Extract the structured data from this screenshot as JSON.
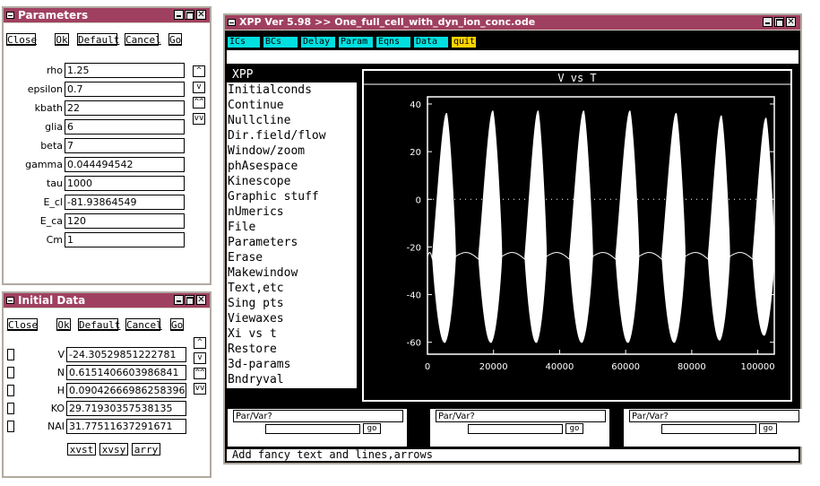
{
  "params_window": {
    "title": "Parameters",
    "buttons": [
      "Close",
      "Ok",
      "Default",
      "Cancel",
      "Go"
    ],
    "side_buttons": [
      "^",
      "v",
      "^^",
      "vv"
    ],
    "rows": [
      {
        "label": "rho",
        "value": "1.25"
      },
      {
        "label": "epsilon",
        "value": "0.7"
      },
      {
        "label": "kbath",
        "value": "22"
      },
      {
        "label": "glia",
        "value": "6"
      },
      {
        "label": "beta",
        "value": "7"
      },
      {
        "label": "gamma",
        "value": "0.044494542"
      },
      {
        "label": "tau",
        "value": "1000"
      },
      {
        "label": "E_cl",
        "value": "-81.93864549"
      },
      {
        "label": "E_ca",
        "value": "120"
      },
      {
        "label": "Cm",
        "value": "1"
      }
    ]
  },
  "init_window": {
    "title": "Initial Data",
    "buttons": [
      "Close",
      "Ok",
      "Default",
      "Cancel",
      "Go"
    ],
    "side_buttons": [
      "^",
      "v",
      "^^",
      "vv"
    ],
    "rows": [
      {
        "label": "V",
        "value": "-24.30529851222781"
      },
      {
        "label": "N",
        "value": "0.6151406603986841"
      },
      {
        "label": "H",
        "value": "0.09042666986258396"
      },
      {
        "label": "KO",
        "value": "29.71930357538135"
      },
      {
        "label": "NAI",
        "value": "31.77511637291671"
      }
    ],
    "bottom_buttons": [
      "xvst",
      "xvsy",
      "arry"
    ]
  },
  "xpp_window": {
    "title": "XPP Ver 5.98 >> One_full_cell_with_dyn_ion_conc.ode",
    "top_tabs": [
      "ICs",
      "BCs",
      "Delay",
      "Param",
      "Eqns",
      "Data",
      "quit"
    ],
    "menu_header": "XPP",
    "menu_items": [
      "Initialconds",
      "Continue",
      "Nullcline",
      "Dir.field/flow",
      "Window/zoom",
      "phAsespace",
      "Kinescope",
      "Graphic stuff",
      "nUmerics",
      "File",
      "Parameters",
      "Erase",
      "Makewindow",
      "Text,etc",
      "Sing pts",
      "Viewaxes",
      "Xi vs t",
      "Restore",
      "3d-params",
      "Bndryval"
    ],
    "sliders": [
      {
        "field": "Par/Var?",
        "go": "go"
      },
      {
        "field": "Par/Var?",
        "go": "go"
      },
      {
        "field": "Par/Var?",
        "go": "go"
      }
    ],
    "status": "Add fancy text and lines,arrows"
  },
  "chart_data": {
    "type": "line",
    "title": "V vs T",
    "xlabel": "",
    "ylabel": "",
    "xlim": [
      0,
      105000
    ],
    "ylim": [
      -65,
      43
    ],
    "x_ticks": [
      0,
      20000,
      40000,
      60000,
      80000,
      100000
    ],
    "y_ticks": [
      40,
      20,
      0,
      -20,
      -40,
      -60
    ],
    "grid": false,
    "colors": {
      "background": "#000000",
      "trace": "#ffffff",
      "zero_line": "#ffffff"
    },
    "baseline_v": -24,
    "bursts": [
      {
        "t_start": 1500,
        "t_end": 8500,
        "v_max": 36,
        "v_min": -60
      },
      {
        "t_start": 15500,
        "t_end": 22500,
        "v_max": 37,
        "v_min": -60
      },
      {
        "t_start": 29500,
        "t_end": 36000,
        "v_max": 37,
        "v_min": -60
      },
      {
        "t_start": 43000,
        "t_end": 50000,
        "v_max": 37,
        "v_min": -60
      },
      {
        "t_start": 57000,
        "t_end": 64000,
        "v_max": 37,
        "v_min": -60
      },
      {
        "t_start": 71000,
        "t_end": 78000,
        "v_max": 36,
        "v_min": -60
      },
      {
        "t_start": 85000,
        "t_end": 91500,
        "v_max": 35,
        "v_min": -59
      },
      {
        "t_start": 98500,
        "t_end": 105000,
        "v_max": 34,
        "v_min": -57
      }
    ]
  }
}
